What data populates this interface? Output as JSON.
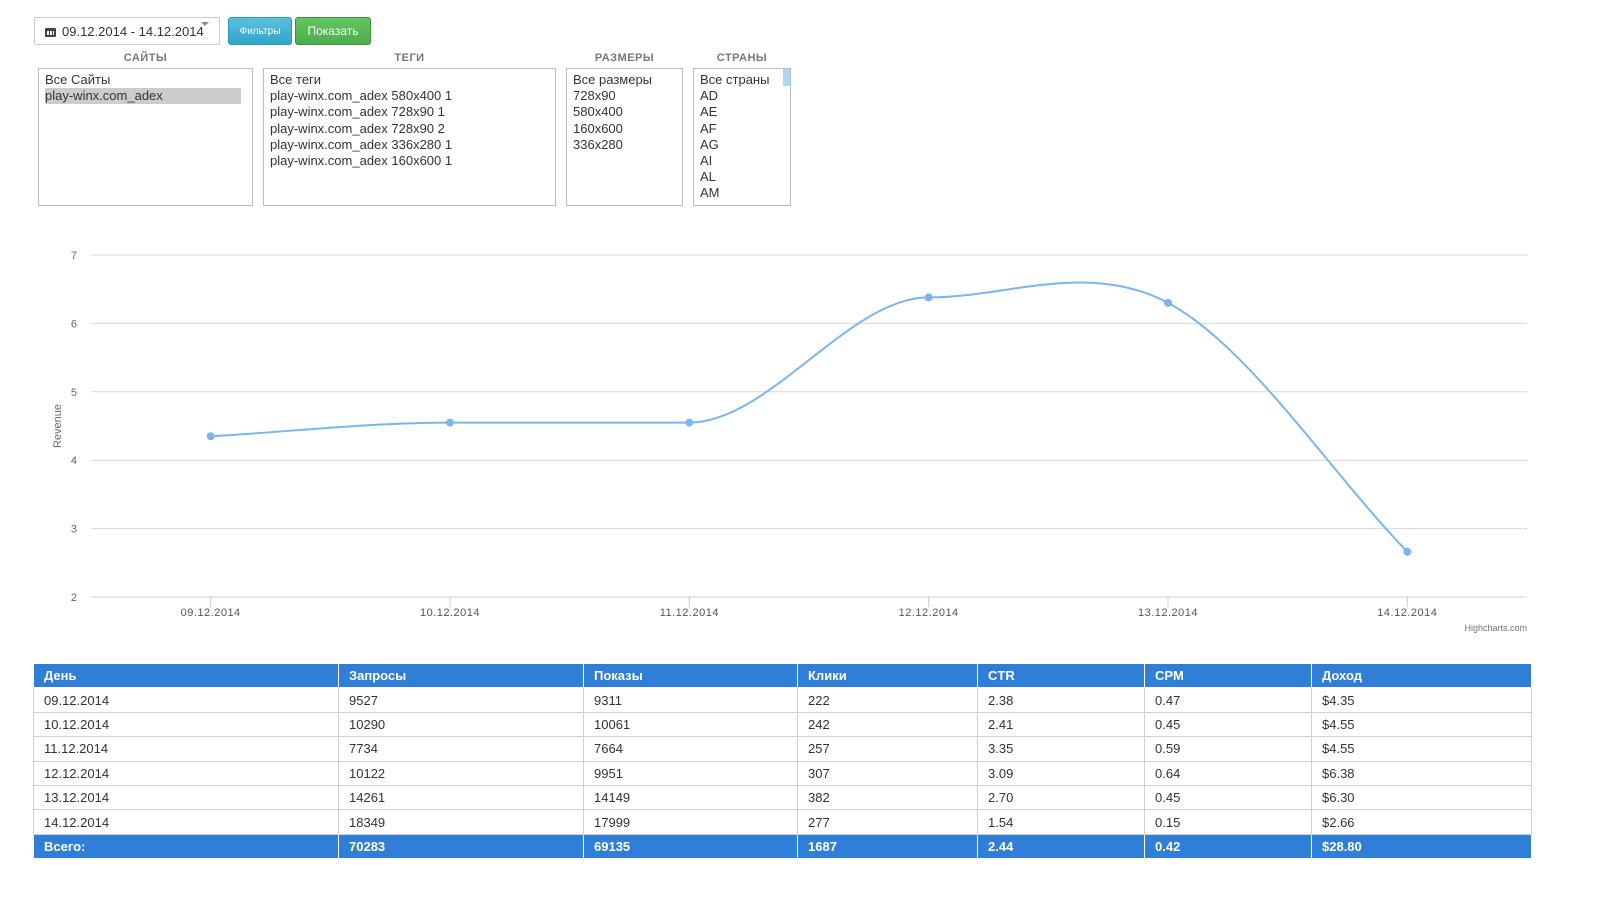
{
  "toolbar": {
    "date_range": "09.12.2014 - 14.12.2014",
    "filters_label": "Фильтры",
    "show_label": "Показать"
  },
  "filters": {
    "sites": {
      "header": "САЙТЫ",
      "options": [
        "Все Сайты",
        "play-winx.com_adex"
      ],
      "selected_index": 1
    },
    "tags": {
      "header": "ТЕГИ",
      "options": [
        "Все теги",
        "play-winx.com_adex 580x400 1",
        "play-winx.com_adex 728x90 1",
        "play-winx.com_adex 728x90 2",
        "play-winx.com_adex 336x280 1",
        "play-winx.com_adex 160x600 1"
      ]
    },
    "sizes": {
      "header": "РАЗМЕРЫ",
      "options": [
        "Все размеры",
        "728x90",
        "580x400",
        "160x600",
        "336x280"
      ]
    },
    "countries": {
      "header": "СТРАНЫ",
      "options": [
        "Все страны",
        "AD",
        "AE",
        "AF",
        "AG",
        "AI",
        "AL",
        "AM"
      ]
    }
  },
  "chart_data": {
    "type": "line",
    "categories": [
      "09.12.2014",
      "10.12.2014",
      "11.12.2014",
      "12.12.2014",
      "13.12.2014",
      "14.12.2014"
    ],
    "series": [
      {
        "values": [
          4.35,
          4.55,
          4.55,
          6.38,
          6.3,
          2.66
        ],
        "color": "#7cb5ec"
      }
    ],
    "ylabel": "Revenue",
    "xlabel": "",
    "ylim": [
      2,
      7
    ],
    "yticks": [
      2,
      3,
      4,
      5,
      6,
      7
    ],
    "grid": true,
    "credits": "Highcharts.com"
  },
  "table": {
    "headers": [
      "День",
      "Запросы",
      "Показы",
      "Клики",
      "CTR",
      "CPM",
      "Доход"
    ],
    "rows": [
      [
        "09.12.2014",
        "9527",
        "9311",
        "222",
        "2.38",
        "0.47",
        "$4.35"
      ],
      [
        "10.12.2014",
        "10290",
        "10061",
        "242",
        "2.41",
        "0.45",
        "$4.55"
      ],
      [
        "11.12.2014",
        "7734",
        "7664",
        "257",
        "3.35",
        "0.59",
        "$4.55"
      ],
      [
        "12.12.2014",
        "10122",
        "9951",
        "307",
        "3.09",
        "0.64",
        "$6.38"
      ],
      [
        "13.12.2014",
        "14261",
        "14149",
        "382",
        "2.70",
        "0.45",
        "$6.30"
      ],
      [
        "14.12.2014",
        "18349",
        "17999",
        "277",
        "1.54",
        "0.15",
        "$2.66"
      ]
    ],
    "totals": [
      "Всего:",
      "70283",
      "69135",
      "1687",
      "2.44",
      "0.42",
      "$28.80"
    ]
  },
  "colors": {
    "header_bg": "#2f7ed8",
    "line": "#7cb5ec",
    "filters_button": "#31b0d5",
    "show_button": "#5cb85c"
  }
}
